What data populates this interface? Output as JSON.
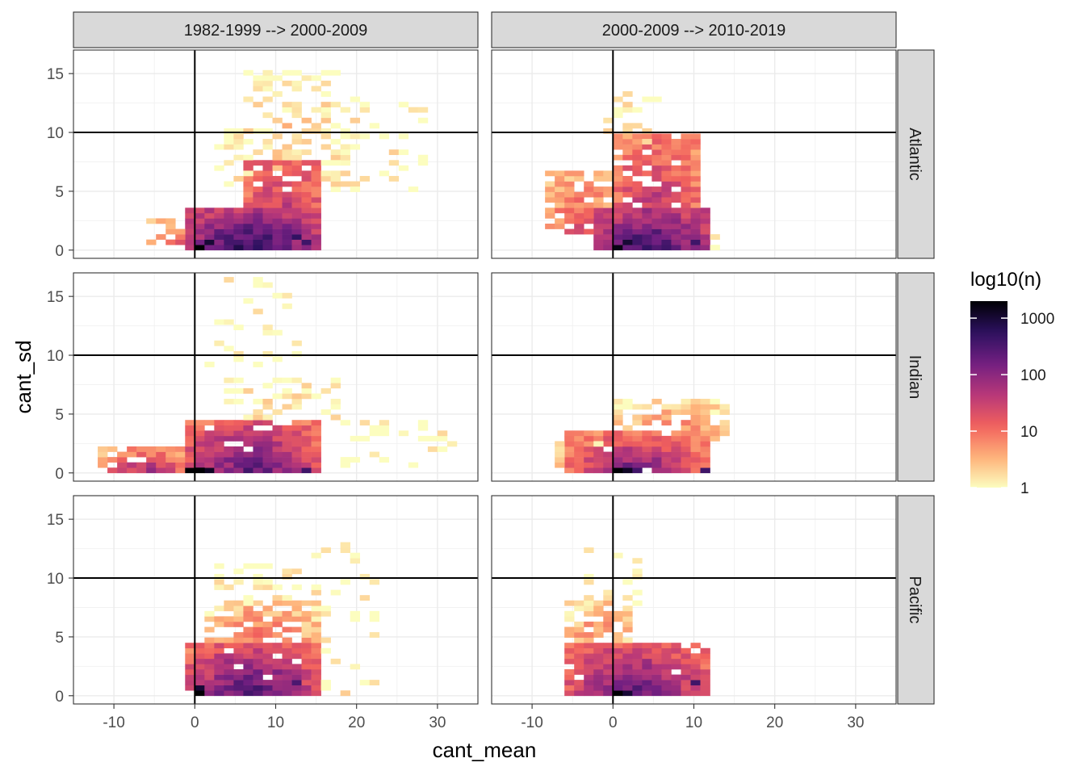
{
  "chart_data": {
    "type": "heatmap",
    "xlabel": "cant_mean",
    "ylabel": "cant_sd",
    "xlim": [
      -15,
      35
    ],
    "ylim": [
      -0.7,
      17
    ],
    "x_ticks": [
      -10,
      0,
      10,
      20,
      30
    ],
    "y_ticks": [
      0,
      5,
      10,
      15
    ],
    "reference_lines": {
      "x": 0,
      "y": 10
    },
    "bin_width": {
      "x": 1.2,
      "y": 0.45
    },
    "columns": [
      "1982-1999 --> 2000-2009",
      "2000-2009 --> 2010-2019"
    ],
    "rows": [
      "Atlantic",
      "Indian",
      "Pacific"
    ],
    "legend": {
      "title": "log10(n)",
      "ticks": [
        1,
        10,
        100,
        1000
      ],
      "tick_labels": [
        "1",
        "10",
        "100",
        "1000"
      ],
      "max": 2000,
      "position": "right",
      "colors": [
        "#fcfdbf",
        "#feb078",
        "#f1605d",
        "#b73779",
        "#721f81",
        "#2c115f",
        "#000004"
      ]
    },
    "panels": [
      {
        "column": "1982-1999 --> 2000-2009",
        "row": "Atlantic",
        "blobs": [
          {
            "x": [
              -1,
              15
            ],
            "y": [
              0,
              3.5
            ],
            "log_peak": 2.8,
            "log_edge": 1.4,
            "fill": 1
          },
          {
            "x": [
              7,
              15
            ],
            "y": [
              3.5,
              7.5
            ],
            "log_peak": 1.5,
            "log_edge": 1.0,
            "fill": 0.9
          },
          {
            "x": [
              -5,
              0
            ],
            "y": [
              0.5,
              2.5
            ],
            "log_peak": 1.2,
            "log_edge": 0.3,
            "fill": 0.7
          },
          {
            "x": [
              3,
              20
            ],
            "y": [
              5,
              10
            ],
            "log_peak": 0.4,
            "log_edge": 0,
            "fill": 0.4
          },
          {
            "x": [
              6,
              18
            ],
            "y": [
              10,
              15
            ],
            "log_peak": 0.3,
            "log_edge": 0,
            "fill": 0.35
          },
          {
            "x": [
              15,
              28
            ],
            "y": [
              5,
              13
            ],
            "log_peak": 0.15,
            "log_edge": 0,
            "fill": 0.18
          }
        ],
        "hotspots": [
          {
            "x": 0,
            "y": 0,
            "log": 3.3
          },
          {
            "x": 1.2,
            "y": 0.45,
            "log": 3.0
          },
          {
            "x": 12,
            "y": 0.9,
            "log": 2.7
          },
          {
            "x": 13.2,
            "y": 0.45,
            "log": 2.6
          }
        ]
      },
      {
        "column": "2000-2009 --> 2010-2019",
        "row": "Atlantic",
        "blobs": [
          {
            "x": [
              -2,
              11
            ],
            "y": [
              0,
              3.5
            ],
            "log_peak": 2.7,
            "log_edge": 1.4,
            "fill": 1
          },
          {
            "x": [
              -8,
              0
            ],
            "y": [
              1.5,
              6.5
            ],
            "log_peak": 1.3,
            "log_edge": 0.4,
            "fill": 0.8
          },
          {
            "x": [
              0,
              10
            ],
            "y": [
              3.5,
              9.5
            ],
            "log_peak": 1.6,
            "log_edge": 0.8,
            "fill": 0.85
          },
          {
            "x": [
              -1,
              5
            ],
            "y": [
              9,
              13.5
            ],
            "log_peak": 0.2,
            "log_edge": 0,
            "fill": 0.45
          },
          {
            "x": [
              9,
              13
            ],
            "y": [
              0,
              2
            ],
            "log_peak": 0.6,
            "log_edge": 0,
            "fill": 0.6
          }
        ],
        "hotspots": [
          {
            "x": 0,
            "y": 0,
            "log": 3.2
          },
          {
            "x": 1.2,
            "y": 0.45,
            "log": 3.0
          },
          {
            "x": 9.6,
            "y": 0.45,
            "log": 2.6
          }
        ]
      },
      {
        "column": "1982-1999 --> 2000-2009",
        "row": "Indian",
        "blobs": [
          {
            "x": [
              -12,
              0
            ],
            "y": [
              0,
              2
            ],
            "log_peak": 1.8,
            "log_edge": 0.5,
            "fill": 0.85
          },
          {
            "x": [
              -1,
              15
            ],
            "y": [
              0,
              4.5
            ],
            "log_peak": 2.4,
            "log_edge": 1.0,
            "fill": 0.95
          },
          {
            "x": [
              4,
              17
            ],
            "y": [
              4.5,
              8
            ],
            "log_peak": 0.2,
            "log_edge": 0,
            "fill": 0.35
          },
          {
            "x": [
              18,
              32
            ],
            "y": [
              0.5,
              4.5
            ],
            "log_peak": 0.15,
            "log_edge": 0,
            "fill": 0.28
          },
          {
            "x": [
              2,
              13
            ],
            "y": [
              9,
              16.5
            ],
            "log_peak": 0.1,
            "log_edge": 0,
            "fill": 0.12
          }
        ],
        "hotspots": [
          {
            "x": -1.2,
            "y": 0,
            "log": 3.3
          },
          {
            "x": 0,
            "y": 0,
            "log": 3.3
          },
          {
            "x": 1.2,
            "y": 0,
            "log": 3.1
          },
          {
            "x": 13.2,
            "y": 0,
            "log": 2.6
          }
        ]
      },
      {
        "column": "2000-2009 --> 2010-2019",
        "row": "Indian",
        "blobs": [
          {
            "x": [
              -5,
              11
            ],
            "y": [
              0,
              3.2
            ],
            "log_peak": 2.3,
            "log_edge": 0.8,
            "fill": 0.95
          },
          {
            "x": [
              0,
              14
            ],
            "y": [
              3,
              6.2
            ],
            "log_peak": 1.0,
            "log_edge": 0.1,
            "fill": 0.7
          },
          {
            "x": [
              -7,
              -2
            ],
            "y": [
              0.5,
              2.5
            ],
            "log_peak": 0.8,
            "log_edge": 0.2,
            "fill": 0.7
          }
        ],
        "hotspots": [
          {
            "x": 0,
            "y": 0,
            "log": 3.3
          },
          {
            "x": 1.2,
            "y": 0,
            "log": 3.1
          },
          {
            "x": 10.8,
            "y": 0,
            "log": 2.6
          }
        ]
      },
      {
        "column": "1982-1999 --> 2000-2009",
        "row": "Pacific",
        "blobs": [
          {
            "x": [
              -1,
              15
            ],
            "y": [
              0,
              4.5
            ],
            "log_peak": 2.6,
            "log_edge": 1.0,
            "fill": 0.95
          },
          {
            "x": [
              2,
              15
            ],
            "y": [
              4.5,
              8
            ],
            "log_peak": 1.2,
            "log_edge": 0.2,
            "fill": 0.75
          },
          {
            "x": [
              3,
              13
            ],
            "y": [
              8,
              11
            ],
            "log_peak": 0.2,
            "log_edge": 0,
            "fill": 0.35
          },
          {
            "x": [
              15,
              22
            ],
            "y": [
              0,
              13
            ],
            "log_peak": 0.1,
            "log_edge": 0,
            "fill": 0.15
          }
        ],
        "hotspots": [
          {
            "x": 0,
            "y": 0,
            "log": 3.4
          },
          {
            "x": 0,
            "y": 0.45,
            "log": 3.0
          },
          {
            "x": 12,
            "y": 0.9,
            "log": 2.5
          }
        ]
      },
      {
        "column": "2000-2009 --> 2010-2019",
        "row": "Pacific",
        "blobs": [
          {
            "x": [
              -5,
              11
            ],
            "y": [
              0,
              4.5
            ],
            "log_peak": 2.4,
            "log_edge": 1.0,
            "fill": 0.95
          },
          {
            "x": [
              -6,
              2
            ],
            "y": [
              4.5,
              8
            ],
            "log_peak": 0.9,
            "log_edge": 0.2,
            "fill": 0.7
          },
          {
            "x": [
              -3,
              3
            ],
            "y": [
              8,
              13
            ],
            "log_peak": 0.1,
            "log_edge": 0,
            "fill": 0.2
          }
        ],
        "hotspots": [
          {
            "x": 0,
            "y": 0,
            "log": 3.3
          },
          {
            "x": 1.2,
            "y": 0,
            "log": 3.0
          },
          {
            "x": 9.6,
            "y": 0.9,
            "log": 2.6
          }
        ]
      }
    ]
  }
}
